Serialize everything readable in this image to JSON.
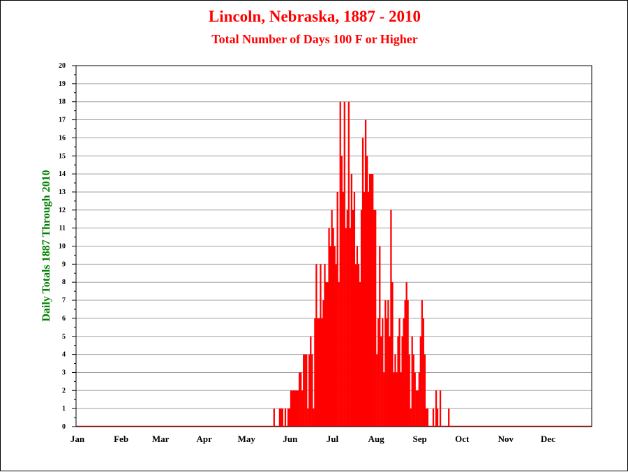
{
  "colors": {
    "title": "#ff0000",
    "ylabel": "#008000",
    "bars": "#ff0000",
    "grid": "#a0a0a0",
    "text": "#000000"
  },
  "chart_data": {
    "type": "bar",
    "title": "Lincoln, Nebraska, 1887 - 2010",
    "subtitle": "Total Number of Days 100 F or Higher",
    "xlabel": "",
    "ylabel": "Daily Totals 1887 Through 2010",
    "ylim": [
      0,
      20
    ],
    "yticks": [
      0,
      1,
      2,
      3,
      4,
      5,
      6,
      7,
      8,
      9,
      10,
      11,
      12,
      13,
      14,
      15,
      16,
      17,
      18,
      19,
      20
    ],
    "grid": true,
    "legend": "none",
    "month_labels": [
      "Jan",
      "Feb",
      "Mar",
      "Apr",
      "May",
      "Jun",
      "Jul",
      "Aug",
      "Sep",
      "Oct",
      "Nov",
      "Dec"
    ],
    "x": "day of year (1-366)",
    "day_start": 141,
    "values": [
      1,
      0,
      0,
      0,
      1,
      1,
      1,
      0,
      1,
      0,
      1,
      1,
      2,
      2,
      2,
      2,
      2,
      2,
      3,
      3,
      2,
      4,
      4,
      4,
      1,
      4,
      5,
      4,
      1,
      6,
      9,
      6,
      6,
      9,
      6,
      7,
      9,
      8,
      8,
      11,
      10,
      12,
      11,
      10,
      9,
      13,
      8,
      18,
      15,
      13,
      18,
      11,
      12,
      18,
      11,
      14,
      12,
      13,
      9,
      10,
      9,
      8,
      12,
      16,
      13,
      17,
      15,
      13,
      14,
      14,
      14,
      12,
      12,
      4,
      6,
      10,
      5,
      6,
      3,
      7,
      6,
      7,
      5,
      12,
      8,
      3,
      4,
      3,
      5,
      6,
      3,
      5,
      6,
      7,
      8,
      7,
      4,
      1,
      5,
      4,
      3,
      2,
      2,
      3,
      5,
      7,
      6,
      4,
      1,
      1,
      0,
      0,
      0,
      1,
      0,
      2,
      1,
      0,
      2,
      0,
      0,
      0,
      0,
      0,
      1,
      0
    ]
  }
}
